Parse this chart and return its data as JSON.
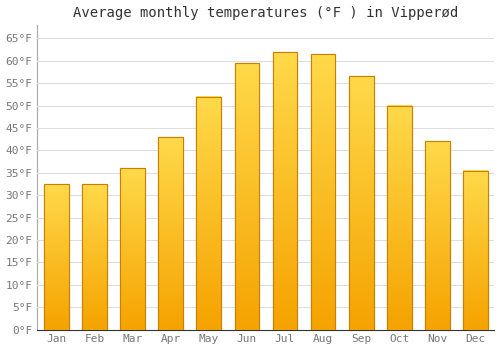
{
  "months": [
    "Jan",
    "Feb",
    "Mar",
    "Apr",
    "May",
    "Jun",
    "Jul",
    "Aug",
    "Sep",
    "Oct",
    "Nov",
    "Dec"
  ],
  "values": [
    32.5,
    32.5,
    36.0,
    43.0,
    52.0,
    59.5,
    62.0,
    61.5,
    56.5,
    50.0,
    42.0,
    35.5
  ],
  "bar_color_top": "#FFD94A",
  "bar_color_bottom": "#F5A300",
  "bar_edge_color": "#C88000",
  "title": "Average monthly temperatures (°F ) in Vipperød",
  "ylabel_ticks": [
    "0°F",
    "5°F",
    "10°F",
    "15°F",
    "20°F",
    "25°F",
    "30°F",
    "35°F",
    "40°F",
    "45°F",
    "50°F",
    "55°F",
    "60°F",
    "65°F"
  ],
  "ytick_values": [
    0,
    5,
    10,
    15,
    20,
    25,
    30,
    35,
    40,
    45,
    50,
    55,
    60,
    65
  ],
  "ylim": [
    0,
    68
  ],
  "background_color": "#ffffff",
  "grid_color": "#dddddd",
  "title_fontsize": 10,
  "tick_fontsize": 8,
  "bar_width": 0.65
}
